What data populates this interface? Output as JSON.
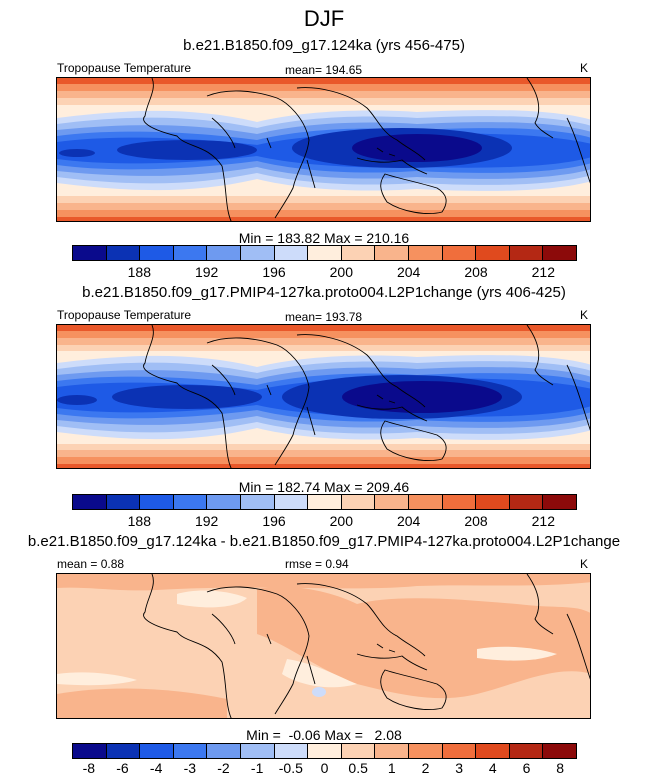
{
  "title": "DJF",
  "colors": [
    "#0a0a8c",
    "#0b32b4",
    "#1e5ae6",
    "#3c78f0",
    "#6e9af0",
    "#a0bef5",
    "#cddcfa",
    "#ffeedd",
    "#fcd2b4",
    "#f9b48c",
    "#f6915f",
    "#f06e3c",
    "#e04a1e",
    "#b42814",
    "#8c0a0a"
  ],
  "coastline_color": "#000000",
  "panels": [
    {
      "title": "b.e21.B1850.f09_g17.124ka (yrs 456-475)",
      "left_label": "Tropopause Temperature",
      "center_label": "mean= 194.65",
      "right_label": "K",
      "minmax": "Min = 183.82 Max = 210.16",
      "tick_labels": [
        "188",
        "192",
        "196",
        "200",
        "204",
        "208",
        "212"
      ]
    },
    {
      "title": "b.e21.B1850.f09_g17.PMIP4-127ka.proto004.L2P1change (yrs 406-425)",
      "left_label": "Tropopause Temperature",
      "center_label": "mean= 193.78",
      "right_label": "K",
      "minmax": "Min = 182.74 Max = 209.46",
      "tick_labels": [
        "188",
        "192",
        "196",
        "200",
        "204",
        "208",
        "212"
      ]
    },
    {
      "title": "b.e21.B1850.f09_g17.124ka - b.e21.B1850.f09_g17.PMIP4-127ka.proto004.L2P1change",
      "left_label": "mean =   0.88",
      "center_label": "rmse =   0.94",
      "right_label": "K",
      "minmax": "Min =  -0.06 Max =   2.08",
      "tick_labels": [
        "-8",
        "-6",
        "-4",
        "-3",
        "-2",
        "-1",
        "-0.5",
        "0",
        "0.5",
        "1",
        "2",
        "3",
        "4",
        "6",
        "8"
      ]
    }
  ],
  "chart_data": [
    {
      "type": "heatmap",
      "title": "b.e21.B1850.f09_g17.124ka (yrs 456-475)",
      "variable": "Tropopause Temperature",
      "units": "K",
      "mean": 194.65,
      "min": 183.82,
      "max": 210.16,
      "contour_levels": [
        186,
        188,
        190,
        192,
        194,
        196,
        198,
        200,
        202,
        204,
        206,
        208,
        210,
        212
      ],
      "pattern": {
        "tropical_min_K": 184,
        "polar_edge_max_K": 210,
        "deepest_cold_region": "Maritime Continent / western Pacific"
      }
    },
    {
      "type": "heatmap",
      "title": "b.e21.B1850.f09_g17.PMIP4-127ka.proto004.L2P1change (yrs 406-425)",
      "variable": "Tropopause Temperature",
      "units": "K",
      "mean": 193.78,
      "min": 182.74,
      "max": 209.46,
      "contour_levels": [
        186,
        188,
        190,
        192,
        194,
        196,
        198,
        200,
        202,
        204,
        206,
        208,
        210,
        212
      ],
      "pattern": {
        "tropical_min_K": 183,
        "polar_edge_max_K": 209,
        "deepest_cold_region": "Maritime Continent / western Pacific"
      }
    },
    {
      "type": "heatmap",
      "title": "b.e21.B1850.f09_g17.124ka - b.e21.B1850.f09_g17.PMIP4-127ka.proto004.L2P1change",
      "variable": "Tropopause Temperature difference",
      "units": "K",
      "mean": 0.88,
      "rmse": 0.94,
      "min": -0.06,
      "max": 2.08,
      "contour_levels": [
        -8,
        -6,
        -4,
        -3,
        -2,
        -1,
        -0.5,
        0,
        0.5,
        1,
        2,
        3,
        4,
        6,
        8
      ],
      "pattern": {
        "typical_value_K": 0.8,
        "largest_region": "south Indian Ocean / Australia",
        "small_negative_patch": "western Indian Ocean"
      }
    }
  ]
}
